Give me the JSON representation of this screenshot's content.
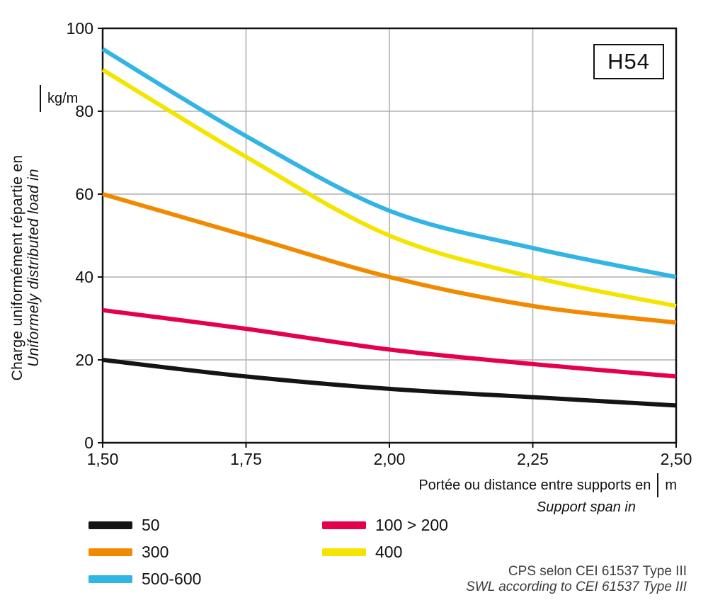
{
  "chart": {
    "series_box_label": "H54",
    "y_axis": {
      "title_fr": "Charge uniformément répartie en",
      "title_en": "Uniformely distributed load in",
      "unit": "kg/m"
    },
    "x_axis": {
      "title_fr": "Portée ou distance entre supports en",
      "title_en": "Support span in",
      "unit": "m"
    },
    "footnote_fr": "CPS selon CEI 61537 Type III",
    "footnote_en": "SWL according to CEI 61537 Type III"
  },
  "chart_data": {
    "type": "line",
    "title": "H54",
    "x": [
      1.5,
      1.75,
      2.0,
      2.25,
      2.5
    ],
    "x_tick_labels": [
      "1,50",
      "1,75",
      "2,00",
      "2,25",
      "2,50"
    ],
    "y_ticks": [
      0,
      20,
      40,
      60,
      80,
      100
    ],
    "xlim": [
      1.5,
      2.5
    ],
    "ylim": [
      0,
      100
    ],
    "x_gridlines": [
      1.75,
      2.0,
      2.25
    ],
    "y_gridlines": [
      20,
      40,
      60,
      80
    ],
    "grid": true,
    "xlabel": "Portée ou distance entre supports en (m) / Support span in (m)",
    "ylabel": "Charge uniformément répartie en (kg/m) / Uniformely distributed load in (kg/m)",
    "legend_position": "bottom-left",
    "series": [
      {
        "name": "50",
        "color": "#141414",
        "values": [
          20,
          16,
          13,
          11,
          9
        ]
      },
      {
        "name": "100 > 200",
        "color": "#e4004e",
        "values": [
          32,
          27.5,
          22.5,
          19,
          16
        ]
      },
      {
        "name": "300",
        "color": "#f18a00",
        "values": [
          60,
          50,
          40,
          33,
          29
        ]
      },
      {
        "name": "400",
        "color": "#f3e500",
        "values": [
          90,
          69,
          50,
          40,
          33
        ]
      },
      {
        "name": "500-600",
        "color": "#32b4e4",
        "values": [
          95,
          74,
          56,
          47,
          40
        ]
      }
    ],
    "legend_columns": [
      [
        "50",
        "300",
        "500-600"
      ],
      [
        "100 > 200",
        "400"
      ]
    ]
  }
}
